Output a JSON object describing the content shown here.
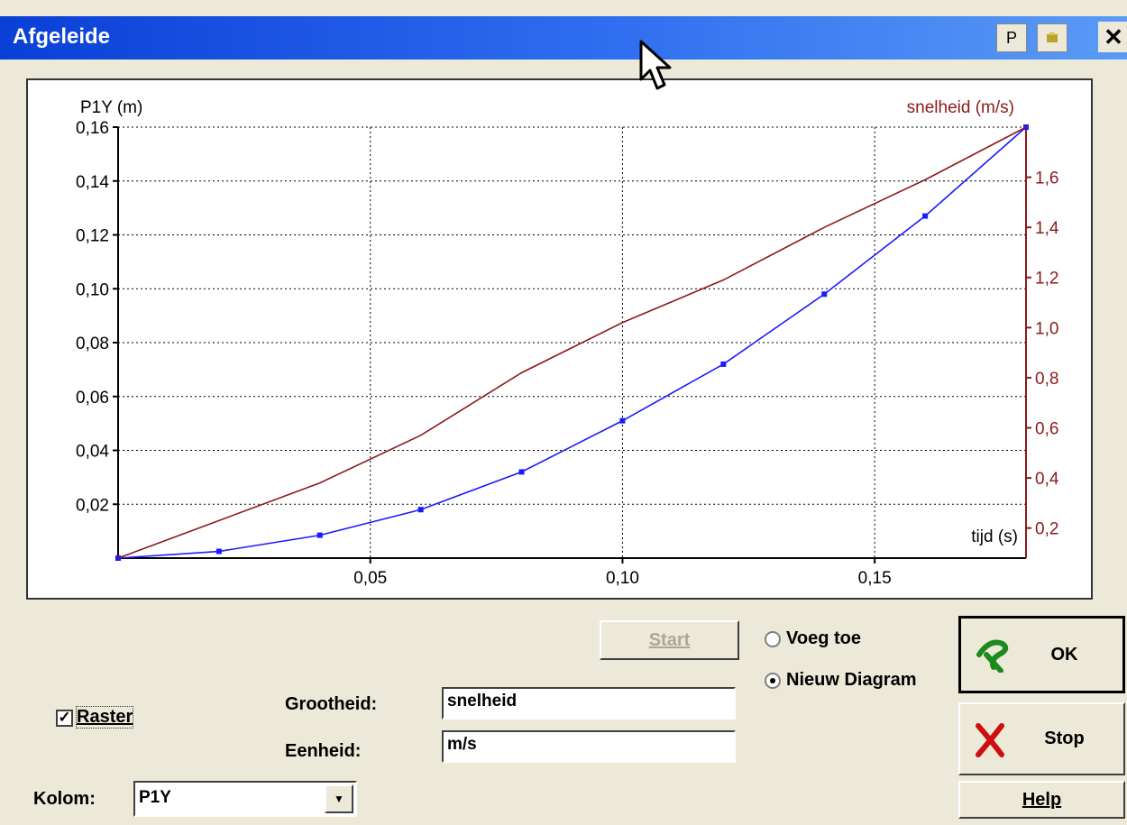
{
  "window": {
    "title": "Afgeleide",
    "btn_p": "P",
    "close": "✕"
  },
  "chart_data": {
    "type": "line",
    "xlabel": "tijd (s)",
    "ylabel_left": "P1Y (m)",
    "ylabel_right": "snelheid (m/s)",
    "x_ticks": [
      "0,05",
      "0,10",
      "0,15"
    ],
    "y_left_ticks": [
      "0,16",
      "0,14",
      "0,12",
      "0,10",
      "0,08",
      "0,06",
      "0,04",
      "0,02"
    ],
    "y_right_ticks": [
      "1,6",
      "1,4",
      "1,2",
      "1,0",
      "0,8",
      "0,6",
      "0,4",
      "0,2"
    ],
    "xlim": [
      0,
      0.18
    ],
    "ylim_left": [
      0,
      0.16
    ],
    "ylim_right": [
      0.08,
      1.8
    ],
    "grid": true,
    "series": [
      {
        "name": "P1Y (m)",
        "axis": "left",
        "color": "#1a1aff",
        "x": [
          0,
          0.02,
          0.04,
          0.06,
          0.08,
          0.1,
          0.12,
          0.14,
          0.16,
          0.18
        ],
        "y": [
          0,
          0.0025,
          0.0085,
          0.018,
          0.032,
          0.051,
          0.072,
          0.098,
          0.127,
          0.16
        ]
      },
      {
        "name": "snelheid (m/s)",
        "axis": "right",
        "color": "#8b1a1a",
        "x": [
          0,
          0.02,
          0.04,
          0.06,
          0.08,
          0.1,
          0.12,
          0.14,
          0.16,
          0.18
        ],
        "y": [
          0.08,
          0.23,
          0.38,
          0.57,
          0.82,
          1.02,
          1.19,
          1.4,
          1.59,
          1.8
        ]
      }
    ]
  },
  "controls": {
    "start": "Start",
    "voeg_toe": "Voeg toe",
    "nieuw_diagram": "Nieuw Diagram",
    "ok": "OK",
    "stop": "Stop",
    "help": "Help",
    "raster": "Raster",
    "grootheid_label": "Grootheid:",
    "grootheid_value": "snelheid",
    "eenheid_label": "Eenheid:",
    "eenheid_value": "m/s",
    "kolom_label": "Kolom:",
    "kolom_value": "P1Y"
  }
}
